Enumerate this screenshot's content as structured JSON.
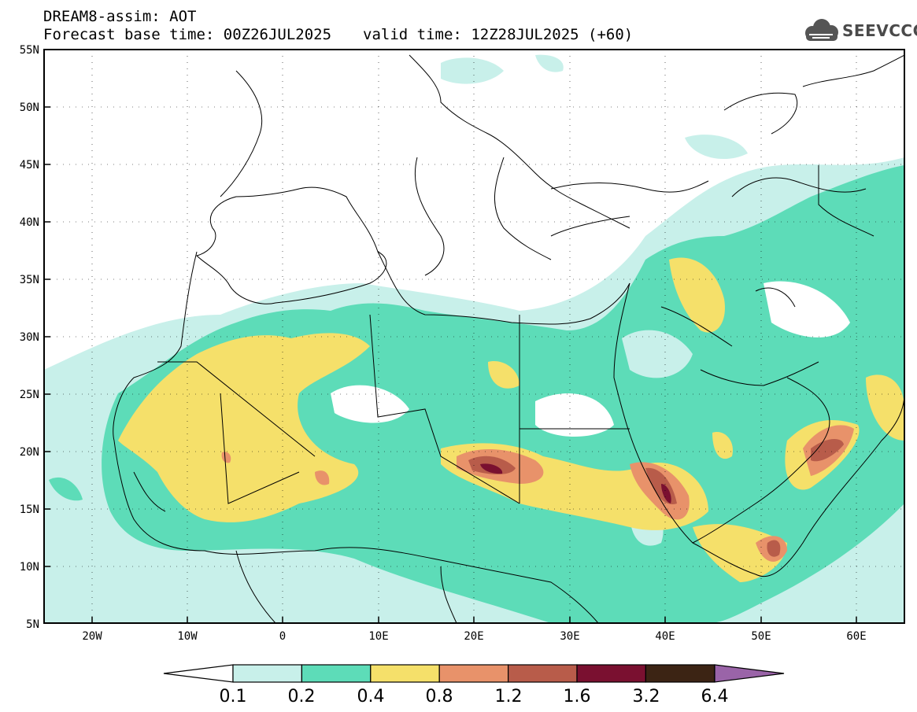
{
  "header": {
    "title": "DREAM8-assim: AOT",
    "forecast_label": "Forecast base time: 00Z26JUL2025",
    "valid_label": "valid time: 12Z28JUL2025 (+60)",
    "logo_text": "SEEVCCC"
  },
  "map": {
    "lat_labels": [
      "55N",
      "50N",
      "45N",
      "40N",
      "35N",
      "30N",
      "25N",
      "20N",
      "15N",
      "10N",
      "5N"
    ],
    "lon_labels": [
      "20W",
      "10W",
      "0",
      "10E",
      "20E",
      "30E",
      "40E",
      "50E",
      "60E"
    ],
    "lon_range": [
      -25,
      65
    ],
    "lat_range": [
      5,
      55
    ]
  },
  "colorbar": {
    "ticks": [
      "0.1",
      "0.2",
      "0.4",
      "0.8",
      "1.2",
      "1.6",
      "3.2",
      "6.4"
    ],
    "colors": [
      "#c8f0ea",
      "#5ddcb8",
      "#f5e06a",
      "#e8926a",
      "#b85c4a",
      "#7a1030",
      "#3c2414",
      "#9a64a8"
    ]
  }
}
